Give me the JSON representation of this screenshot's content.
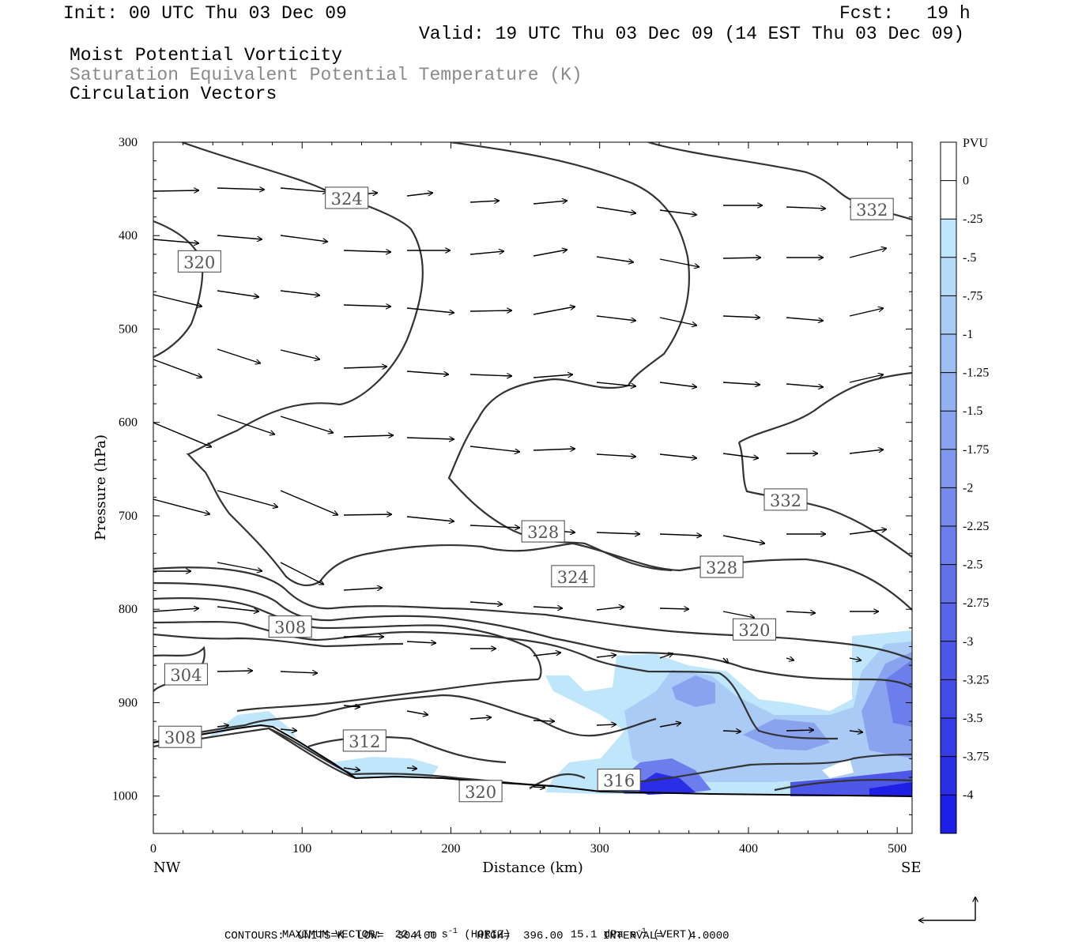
{
  "header": {
    "init": "Init: 00 UTC Thu 03 Dec 09",
    "fcst": "Fcst:   19 h",
    "valid": "Valid: 19 UTC Thu 03 Dec 09 (14 EST Thu 03 Dec 09)",
    "field1": "Moist Potential Vorticity",
    "field2": "Saturation Equivalent Potential Temperature (K)",
    "field3": "Circulation Vectors"
  },
  "footer": {
    "max_vector_label": "MAXIMUM VECTOR:",
    "max_horiz_value": "22.4 m s",
    "max_horiz_unit": "(HORIZ)",
    "max_vert_value": "15.1 dPa s",
    "max_vert_unit": "(VERT)",
    "exponent": "-1",
    "contours": "CONTOURS:  UNITS=K  LOW=  304.00      HIGH=  396.00      INTERVAL=    4.0000"
  },
  "chart_data": {
    "type": "contour",
    "xlabel": "Distance (km)",
    "ylabel": "Pressure (hPa)",
    "xlim": [
      0,
      510
    ],
    "ylim": [
      1040,
      300
    ],
    "x_ticks": [
      0,
      100,
      200,
      300,
      400,
      500
    ],
    "y_ticks": [
      300,
      400,
      500,
      600,
      700,
      800,
      900,
      1000
    ],
    "x_end_labels": {
      "left": "NW",
      "right": "SE"
    },
    "colorbar": {
      "unit": "PVU",
      "labels": [
        "0",
        "-.25",
        "-.5",
        "-.75",
        "-1",
        "-1.25",
        "-1.5",
        "-1.75",
        "-2",
        "-2.25",
        "-2.5",
        "-2.75",
        "-3",
        "-3.25",
        "-3.5",
        "-3.75",
        "-4"
      ],
      "colors": [
        "#ffffff",
        "#ffffff",
        "#bfe6fb",
        "#b7daf8",
        "#a9cbf5",
        "#9dbdf3",
        "#93b0f1",
        "#8aa3ef",
        "#8097ee",
        "#768aec",
        "#6c7eeb",
        "#6271ea",
        "#5864e9",
        "#4d57e8",
        "#424ae7",
        "#363ce6",
        "#2a2ee5",
        "#1d1fe4"
      ]
    },
    "contour_labels": [
      {
        "text": "324",
        "x": 130,
        "p": 360
      },
      {
        "text": "332",
        "x": 483,
        "p": 372
      },
      {
        "text": "320",
        "x": 31,
        "p": 428
      },
      {
        "text": "332",
        "x": 425,
        "p": 683
      },
      {
        "text": "328",
        "x": 262,
        "p": 717
      },
      {
        "text": "324",
        "x": 282,
        "p": 765
      },
      {
        "text": "328",
        "x": 382,
        "p": 755
      },
      {
        "text": "308",
        "x": 92,
        "p": 819
      },
      {
        "text": "320",
        "x": 404,
        "p": 822
      },
      {
        "text": "304",
        "x": 22,
        "p": 870
      },
      {
        "text": "308",
        "x": 18,
        "p": 937
      },
      {
        "text": "312",
        "x": 142,
        "p": 941
      },
      {
        "text": "316",
        "x": 313,
        "p": 983
      },
      {
        "text": "320",
        "x": 220,
        "p": 995
      }
    ],
    "max_horizontal_wind_ms": 22.4,
    "max_vertical_motion_dPa_s": 15.1,
    "contour_low": 304.0,
    "contour_high": 396.0,
    "contour_interval": 4.0
  }
}
